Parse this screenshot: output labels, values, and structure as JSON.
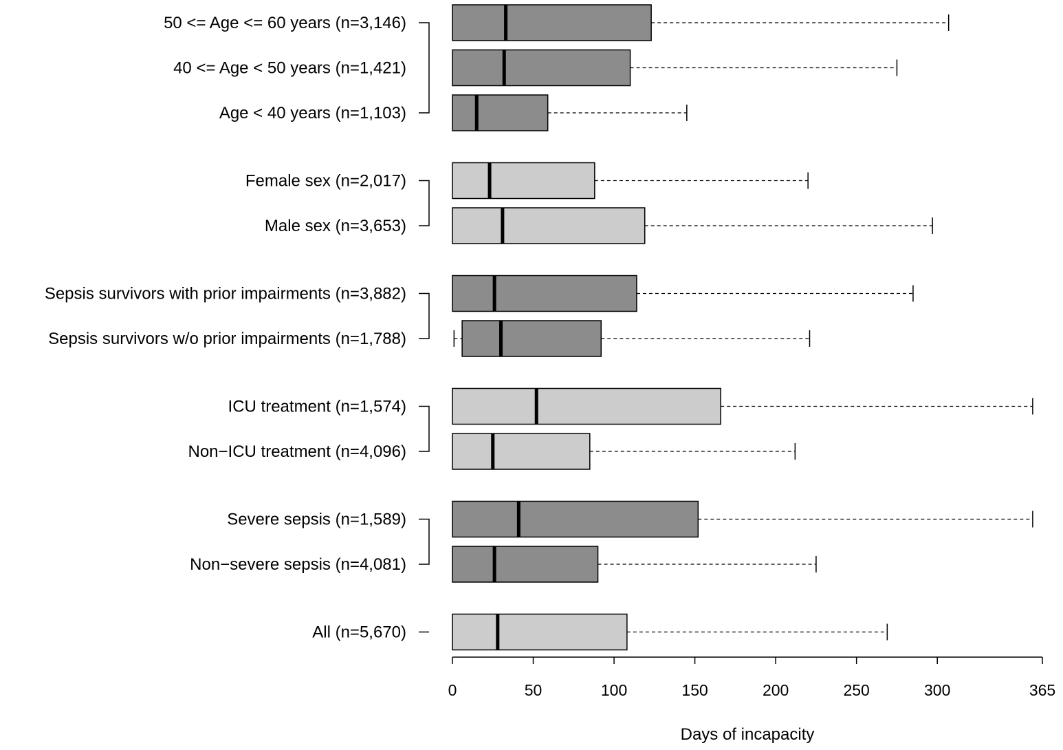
{
  "chart_data": {
    "type": "boxplot",
    "orientation": "horizontal",
    "xlabel": "Days of incapacity",
    "xlim": [
      0,
      365
    ],
    "xticks": [
      0,
      50,
      100,
      150,
      200,
      250,
      300,
      365
    ],
    "xtick_labels": [
      "0",
      "50",
      "100",
      "150",
      "200",
      "250",
      "300",
      "365"
    ],
    "whisker_style": "dashed",
    "colors": {
      "dark": "#8c8c8c",
      "light": "#cccccc",
      "line": "#000000"
    },
    "groups": [
      {
        "bracket": true,
        "items": [
          {
            "label": "50 <= Age <= 60 years (n=3,146)",
            "fill": "dark",
            "whisker_low": 0,
            "q1": 0,
            "median": 33,
            "q3": 123,
            "whisker_high": 307
          },
          {
            "label": "40 <= Age < 50 years (n=1,421)",
            "fill": "dark",
            "whisker_low": 0,
            "q1": 0,
            "median": 32,
            "q3": 110,
            "whisker_high": 275
          },
          {
            "label": "Age < 40 years (n=1,103)",
            "fill": "dark",
            "whisker_low": 0,
            "q1": 0,
            "median": 15,
            "q3": 59,
            "whisker_high": 145
          }
        ]
      },
      {
        "bracket": true,
        "items": [
          {
            "label": "Female sex (n=2,017)",
            "fill": "light",
            "whisker_low": 0,
            "q1": 0,
            "median": 23,
            "q3": 88,
            "whisker_high": 220
          },
          {
            "label": "Male sex (n=3,653)",
            "fill": "light",
            "whisker_low": 0,
            "q1": 0,
            "median": 31,
            "q3": 119,
            "whisker_high": 297
          }
        ]
      },
      {
        "bracket": true,
        "items": [
          {
            "label": "Sepsis survivors with prior impairments (n=3,882)",
            "fill": "dark",
            "whisker_low": 0,
            "q1": 0,
            "median": 26,
            "q3": 114,
            "whisker_high": 285
          },
          {
            "label": "Sepsis survivors w/o prior impairments (n=1,788)",
            "fill": "dark",
            "whisker_low": 1,
            "q1": 6,
            "median": 30,
            "q3": 92,
            "whisker_high": 221
          }
        ]
      },
      {
        "bracket": true,
        "items": [
          {
            "label": "ICU treatment (n=1,574)",
            "fill": "light",
            "whisker_low": 0,
            "q1": 0,
            "median": 52,
            "q3": 166,
            "whisker_high": 359
          },
          {
            "label": "Non−ICU treatment (n=4,096)",
            "fill": "light",
            "whisker_low": 0,
            "q1": 0,
            "median": 25,
            "q3": 85,
            "whisker_high": 212
          }
        ]
      },
      {
        "bracket": true,
        "items": [
          {
            "label": "Severe sepsis (n=1,589)",
            "fill": "dark",
            "whisker_low": 0,
            "q1": 0,
            "median": 41,
            "q3": 152,
            "whisker_high": 359
          },
          {
            "label": "Non−severe sepsis (n=4,081)",
            "fill": "dark",
            "whisker_low": 0,
            "q1": 0,
            "median": 26,
            "q3": 90,
            "whisker_high": 225
          }
        ]
      },
      {
        "bracket": false,
        "items": [
          {
            "label": "All (n=5,670)",
            "fill": "light",
            "whisker_low": 0,
            "q1": 0,
            "median": 28,
            "q3": 108,
            "whisker_high": 269
          }
        ]
      }
    ]
  }
}
